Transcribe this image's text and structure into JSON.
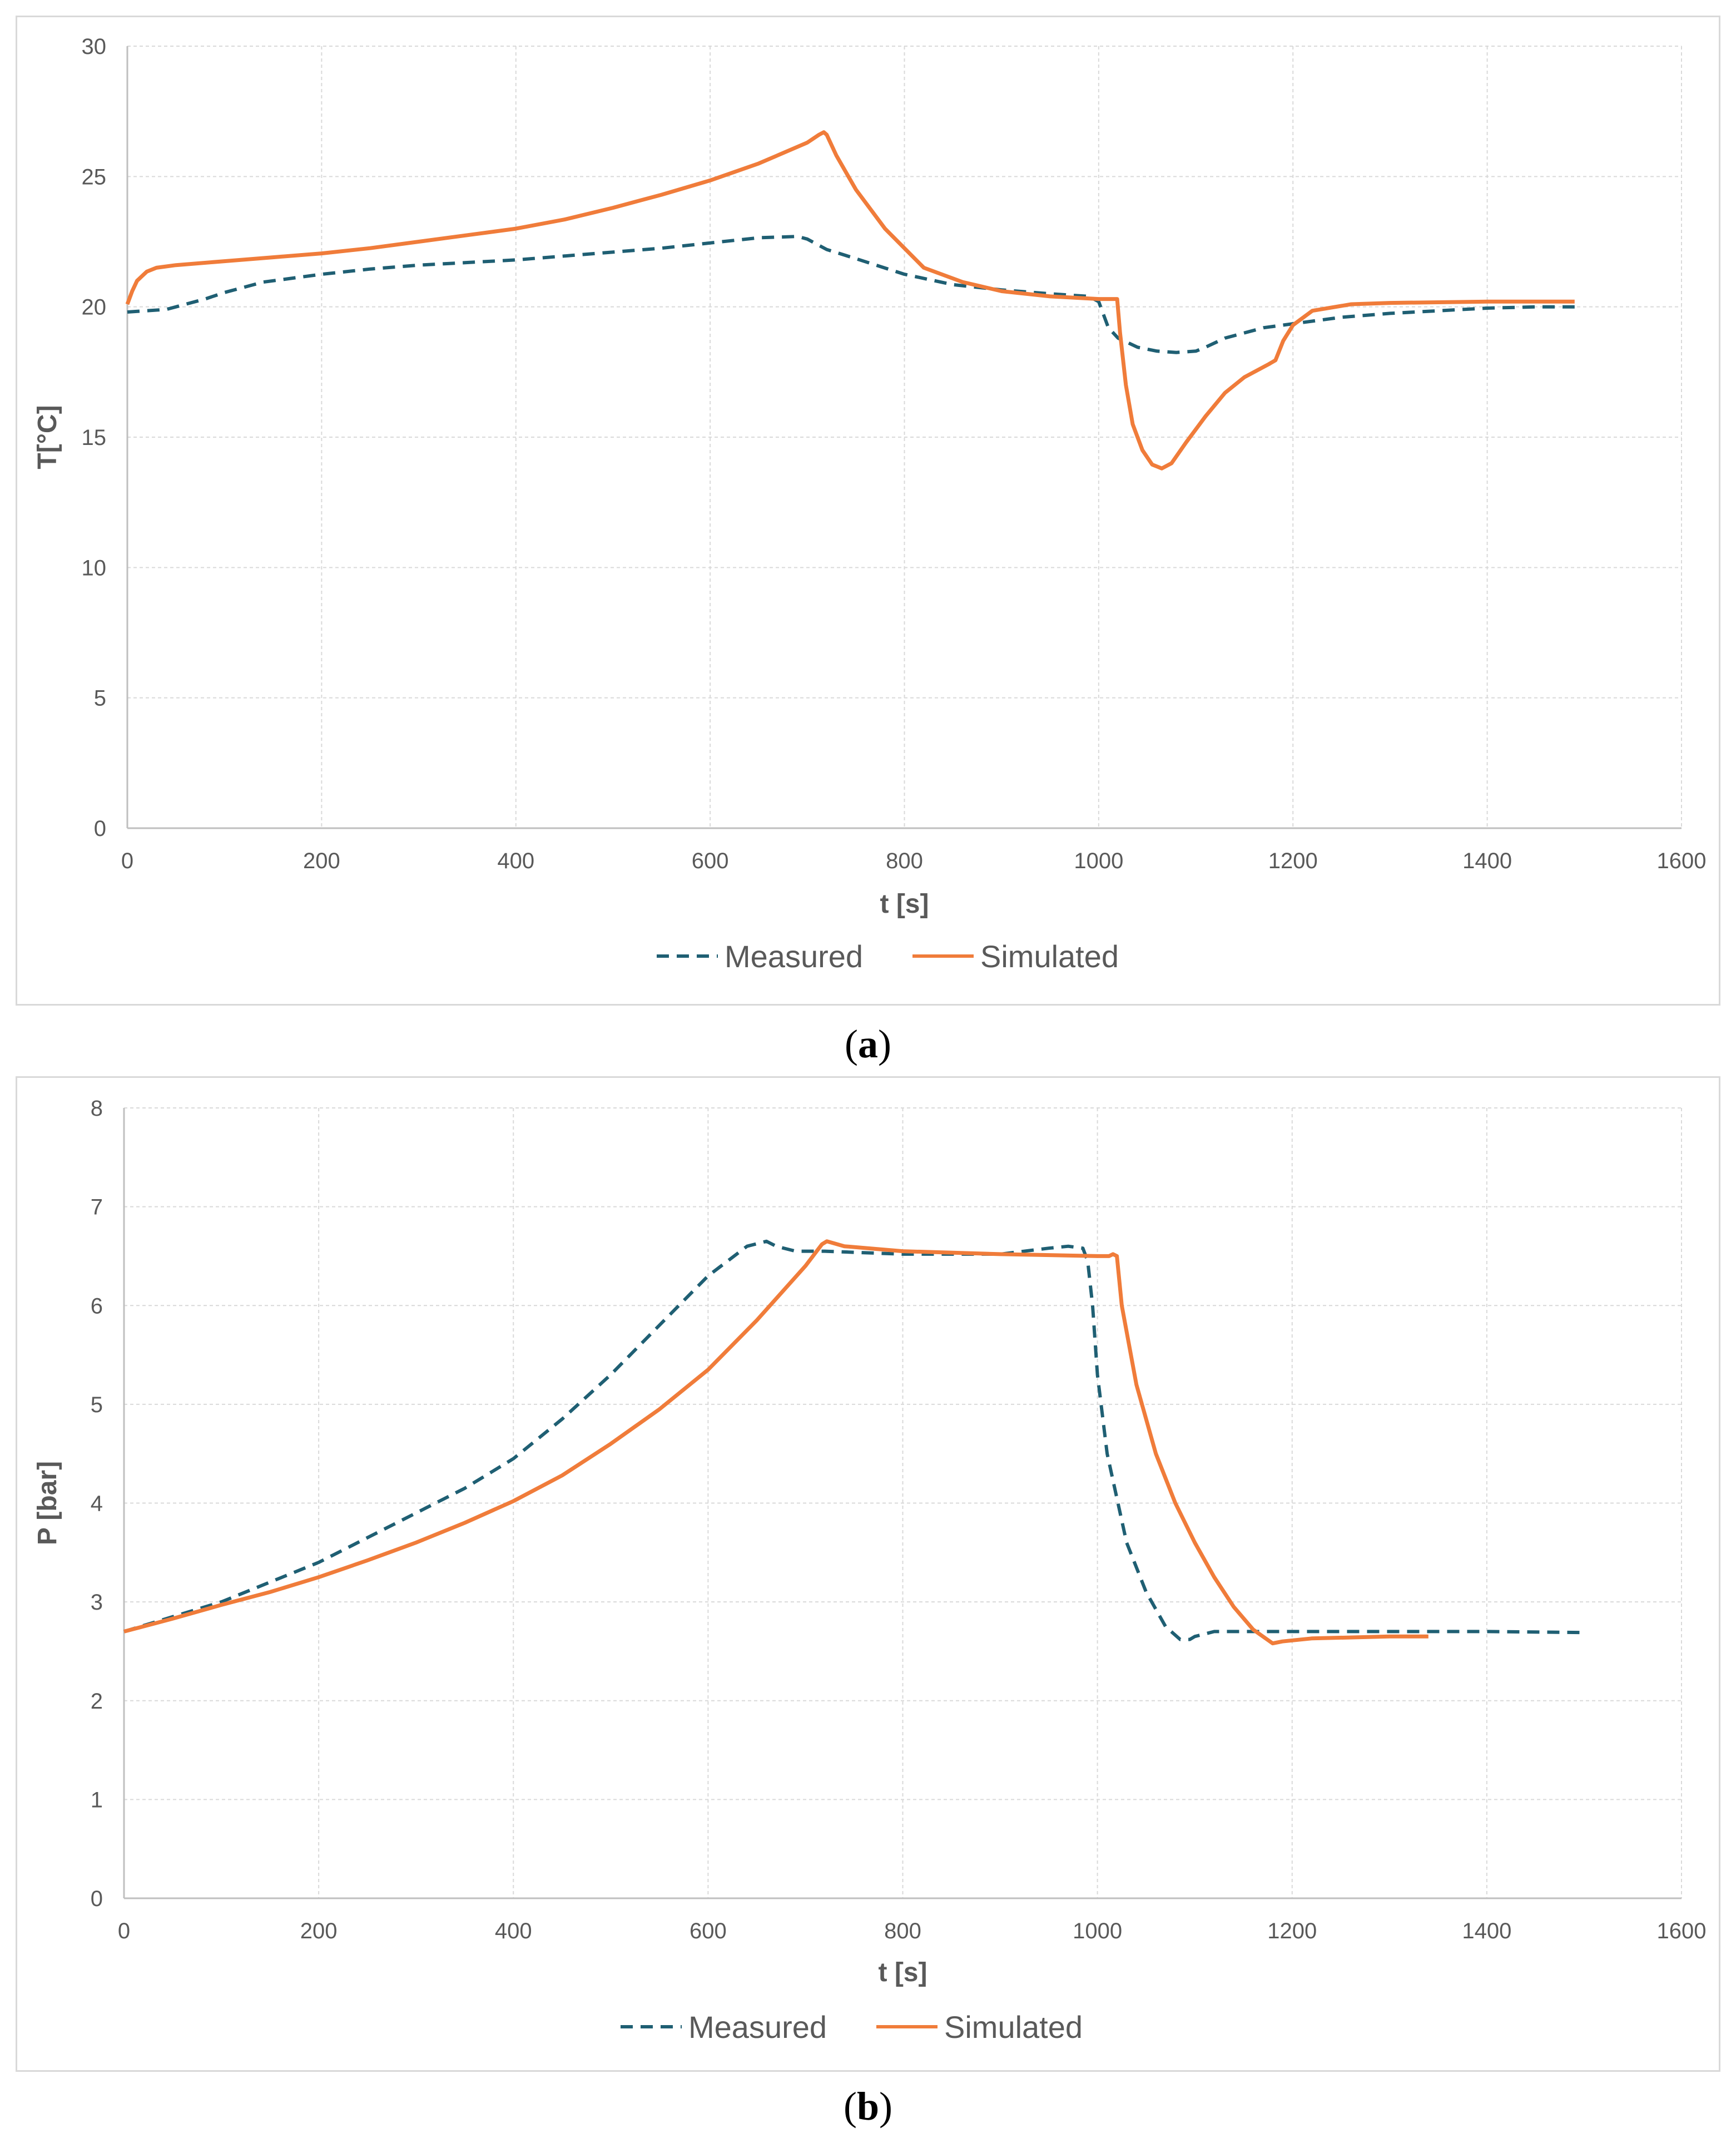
{
  "chart_data": [
    {
      "type": "line",
      "caption": "a",
      "xlabel": "t [s]",
      "ylabel": "T[°C]",
      "xlim": [
        0,
        1600
      ],
      "ylim": [
        0,
        30
      ],
      "xticks": [
        0,
        200,
        400,
        600,
        800,
        1000,
        1200,
        1400,
        1600
      ],
      "yticks": [
        0,
        5,
        10,
        15,
        20,
        25,
        30
      ],
      "grid": true,
      "legend_position": "bottom-center",
      "series": [
        {
          "name": "Measured",
          "color": "#1f5f73",
          "style": "dashed",
          "x": [
            0,
            20,
            40,
            60,
            80,
            100,
            120,
            140,
            160,
            180,
            200,
            250,
            300,
            350,
            400,
            450,
            500,
            550,
            600,
            650,
            690,
            700,
            720,
            750,
            800,
            850,
            900,
            950,
            990,
            1000,
            1010,
            1020,
            1040,
            1060,
            1080,
            1100,
            1110,
            1130,
            1150,
            1170,
            1200,
            1250,
            1300,
            1350,
            1400,
            1450,
            1490
          ],
          "y": [
            19.8,
            19.85,
            19.9,
            20.1,
            20.3,
            20.55,
            20.75,
            20.95,
            21.05,
            21.15,
            21.25,
            21.45,
            21.6,
            21.7,
            21.8,
            21.95,
            22.1,
            22.25,
            22.45,
            22.65,
            22.7,
            22.6,
            22.2,
            21.85,
            21.25,
            20.85,
            20.65,
            20.5,
            20.4,
            20.2,
            19.2,
            18.8,
            18.45,
            18.3,
            18.25,
            18.3,
            18.45,
            18.8,
            19.0,
            19.2,
            19.35,
            19.6,
            19.75,
            19.85,
            19.95,
            20.0,
            20.0
          ]
        },
        {
          "name": "Simulated",
          "color": "#f07c3a",
          "style": "solid",
          "x": [
            0,
            5,
            10,
            20,
            30,
            50,
            100,
            150,
            200,
            250,
            300,
            350,
            400,
            450,
            500,
            550,
            600,
            650,
            700,
            712,
            717,
            720,
            730,
            750,
            780,
            820,
            860,
            900,
            950,
            1000,
            1019,
            1022,
            1028,
            1035,
            1045,
            1055,
            1065,
            1075,
            1090,
            1110,
            1130,
            1150,
            1175,
            1182,
            1190,
            1200,
            1220,
            1260,
            1300,
            1400,
            1490
          ],
          "y": [
            20.1,
            20.6,
            21.0,
            21.35,
            21.5,
            21.6,
            21.75,
            21.9,
            22.05,
            22.25,
            22.5,
            22.75,
            23.0,
            23.35,
            23.8,
            24.3,
            24.85,
            25.5,
            26.3,
            26.6,
            26.7,
            26.6,
            25.8,
            24.5,
            23.0,
            21.5,
            20.95,
            20.6,
            20.4,
            20.3,
            20.3,
            19.0,
            17.0,
            15.5,
            14.5,
            13.95,
            13.8,
            14.0,
            14.8,
            15.8,
            16.7,
            17.3,
            17.8,
            17.95,
            18.7,
            19.3,
            19.85,
            20.1,
            20.15,
            20.2,
            20.2
          ]
        }
      ]
    },
    {
      "type": "line",
      "caption": "b",
      "xlabel": "t [s]",
      "ylabel": "P [bar]",
      "xlim": [
        0,
        1600
      ],
      "ylim": [
        0,
        8
      ],
      "xticks": [
        0,
        200,
        400,
        600,
        800,
        1000,
        1200,
        1400,
        1600
      ],
      "yticks": [
        0,
        1,
        2,
        3,
        4,
        5,
        6,
        7,
        8
      ],
      "grid": true,
      "legend_position": "bottom-center",
      "series": [
        {
          "name": "Measured",
          "color": "#1f5f73",
          "style": "dashed",
          "x": [
            0,
            50,
            100,
            150,
            200,
            250,
            300,
            350,
            400,
            450,
            500,
            550,
            600,
            640,
            660,
            670,
            690,
            720,
            800,
            900,
            950,
            970,
            985,
            990,
            995,
            1000,
            1010,
            1030,
            1050,
            1070,
            1085,
            1095,
            1100,
            1120,
            1150,
            1200,
            1300,
            1400,
            1500
          ],
          "y": [
            2.7,
            2.85,
            3.0,
            3.2,
            3.4,
            3.65,
            3.9,
            4.15,
            4.45,
            4.85,
            5.3,
            5.8,
            6.3,
            6.6,
            6.65,
            6.6,
            6.55,
            6.55,
            6.52,
            6.52,
            6.58,
            6.6,
            6.58,
            6.45,
            6.0,
            5.3,
            4.5,
            3.6,
            3.1,
            2.75,
            2.62,
            2.62,
            2.65,
            2.7,
            2.7,
            2.7,
            2.7,
            2.7,
            2.69
          ]
        },
        {
          "name": "Simulated",
          "color": "#f07c3a",
          "style": "solid",
          "x": [
            0,
            50,
            100,
            150,
            200,
            250,
            300,
            350,
            400,
            450,
            500,
            550,
            600,
            650,
            700,
            717,
            722,
            740,
            800,
            900,
            1000,
            1012,
            1016,
            1020,
            1025,
            1040,
            1060,
            1080,
            1100,
            1120,
            1140,
            1160,
            1180,
            1190,
            1220,
            1300,
            1340
          ],
          "y": [
            2.7,
            2.83,
            2.97,
            3.1,
            3.25,
            3.42,
            3.6,
            3.8,
            4.02,
            4.28,
            4.6,
            4.95,
            5.35,
            5.85,
            6.4,
            6.62,
            6.65,
            6.6,
            6.55,
            6.52,
            6.5,
            6.5,
            6.52,
            6.5,
            6.0,
            5.2,
            4.5,
            4.0,
            3.6,
            3.25,
            2.95,
            2.72,
            2.58,
            2.6,
            2.63,
            2.65,
            2.65
          ]
        }
      ]
    }
  ]
}
